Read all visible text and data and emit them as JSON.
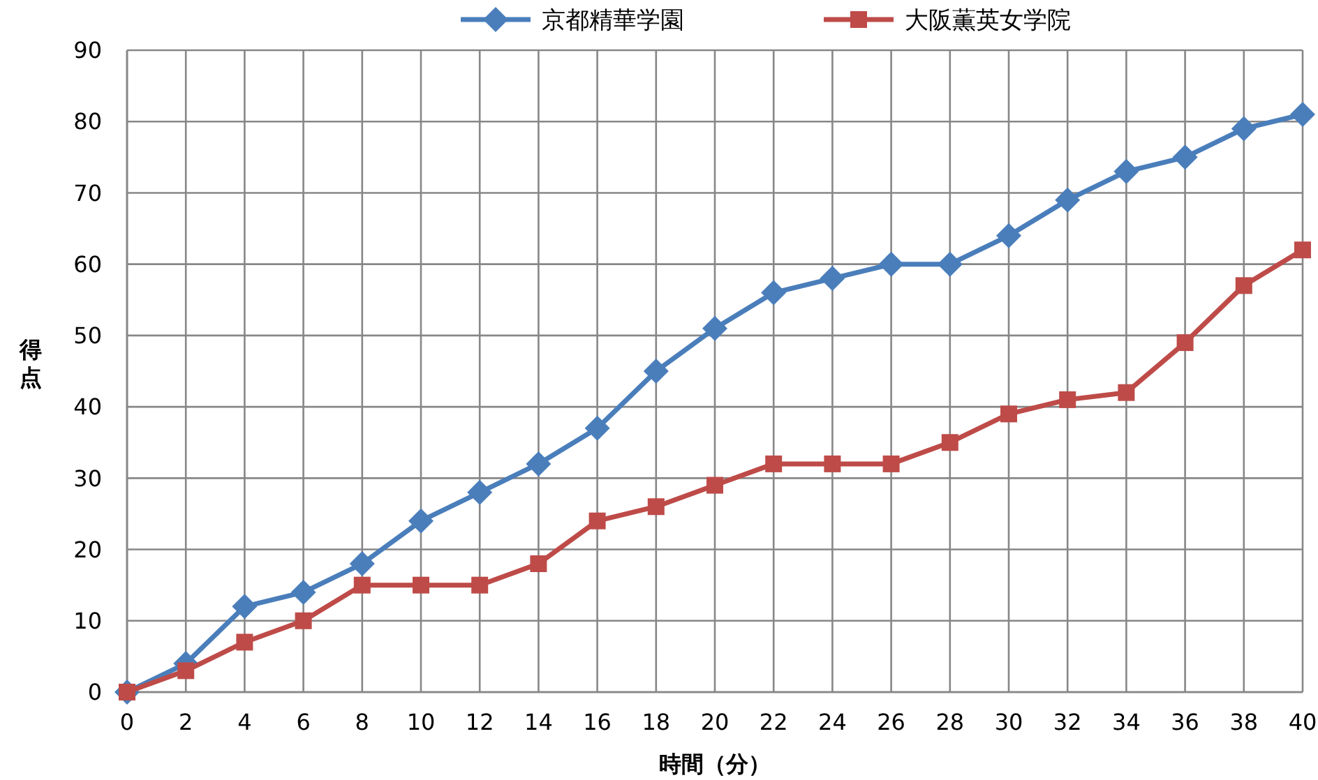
{
  "chart_data": {
    "type": "line",
    "xlabel": "時間（分）",
    "ylabel": "得点",
    "x": [
      0,
      2,
      4,
      6,
      8,
      10,
      12,
      14,
      16,
      18,
      20,
      22,
      24,
      26,
      28,
      30,
      32,
      34,
      36,
      38,
      40
    ],
    "series": [
      {
        "name": "京都精華学園",
        "color": "#4a7ebb",
        "marker": "diamond",
        "values": [
          0,
          4,
          12,
          14,
          18,
          24,
          28,
          32,
          37,
          45,
          51,
          56,
          58,
          60,
          60,
          64,
          69,
          73,
          75,
          79,
          81
        ]
      },
      {
        "name": "大阪薫英女学院",
        "color": "#be4b48",
        "marker": "square",
        "values": [
          0,
          3,
          7,
          10,
          15,
          15,
          15,
          18,
          24,
          26,
          29,
          32,
          32,
          32,
          35,
          39,
          41,
          42,
          49,
          57,
          62
        ]
      }
    ],
    "xlim": [
      0,
      40
    ],
    "xticks": [
      0,
      2,
      4,
      6,
      8,
      10,
      12,
      14,
      16,
      18,
      20,
      22,
      24,
      26,
      28,
      30,
      32,
      34,
      36,
      38,
      40
    ],
    "ylim": [
      0,
      90
    ],
    "yticks": [
      0,
      10,
      20,
      30,
      40,
      50,
      60,
      70,
      80,
      90
    ],
    "grid": true,
    "legend": "top",
    "line_style": "solid"
  }
}
